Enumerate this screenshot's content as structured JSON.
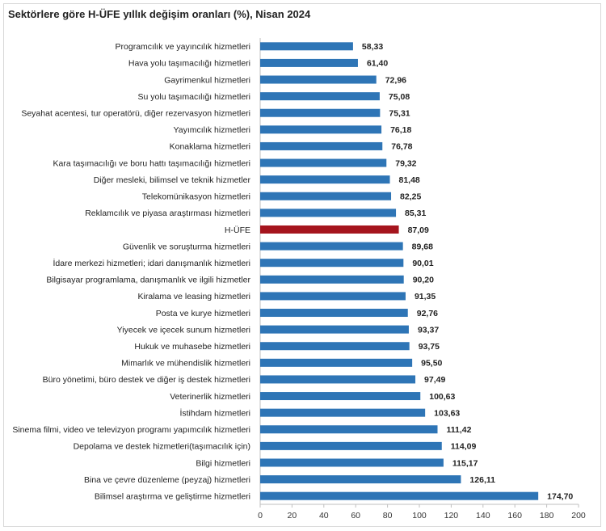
{
  "title": "Sektörlere göre H-ÜFE yıllık değişim oranları (%), Nisan 2024",
  "colors": {
    "bar": "#2e75b6",
    "highlight": "#a5141d"
  },
  "chart_data": {
    "type": "bar",
    "orientation": "horizontal",
    "title": "Sektörlere göre H-ÜFE yıllık değişim oranları (%), Nisan 2024",
    "xlabel": "",
    "ylabel": "",
    "xlim": [
      0,
      200
    ],
    "x_ticks": [
      "0",
      "20",
      "40",
      "60",
      "80",
      "100",
      "120",
      "140",
      "160",
      "180",
      "200"
    ],
    "grid": false,
    "highlighted_category": "H-ÜFE",
    "categories": [
      "Programcılık ve yayıncılık hizmetleri",
      "Hava yolu taşımacılığı hizmetleri",
      "Gayrimenkul hizmetleri",
      "Su yolu taşımacılığı hizmetleri",
      "Seyahat acentesi, tur operatörü, diğer rezervasyon hizmetleri",
      "Yayımcılık hizmetleri",
      "Konaklama hizmetleri",
      "Kara taşımacılığı ve boru hattı taşımacılığı hizmetleri",
      "Diğer mesleki, bilimsel ve teknik hizmetler",
      "Telekomünikasyon hizmetleri",
      "Reklamcılık ve piyasa araştırması hizmetleri",
      "H-ÜFE",
      "Güvenlik ve soruşturma hizmetleri",
      "İdare merkezi hizmetleri; idari danışmanlık hizmetleri",
      "Bilgisayar programlama, danışmanlık ve ilgili hizmetler",
      "Kiralama ve leasing hizmetleri",
      "Posta ve kurye hizmetleri",
      "Yiyecek ve içecek sunum hizmetleri",
      "Hukuk ve muhasebe hizmetleri",
      "Mimarlık ve mühendislik hizmetleri",
      "Büro yönetimi, büro destek ve diğer iş destek hizmetleri",
      "Veterinerlik hizmetleri",
      "İstihdam hizmetleri",
      "Sinema filmi, video ve televizyon programı yapımcılık hizmetleri",
      "Depolama ve destek hizmetleri(taşımacılık için)",
      "Bilgi hizmetleri",
      "Bina ve çevre düzenleme (peyzaj) hizmetleri",
      "Bilimsel araştırma ve geliştirme hizmetleri"
    ],
    "values": [
      58.33,
      61.4,
      72.96,
      75.08,
      75.31,
      76.18,
      76.78,
      79.32,
      81.48,
      82.25,
      85.31,
      87.09,
      89.68,
      90.01,
      90.2,
      91.35,
      92.76,
      93.37,
      93.75,
      95.5,
      97.49,
      100.63,
      103.63,
      111.42,
      114.09,
      115.17,
      126.11,
      174.7
    ],
    "value_labels": [
      "58,33",
      "61,40",
      "72,96",
      "75,08",
      "75,31",
      "76,18",
      "76,78",
      "79,32",
      "81,48",
      "82,25",
      "85,31",
      "87,09",
      "89,68",
      "90,01",
      "90,20",
      "91,35",
      "92,76",
      "93,37",
      "93,75",
      "95,50",
      "97,49",
      "100,63",
      "103,63",
      "111,42",
      "114,09",
      "115,17",
      "126,11",
      "174,70"
    ]
  }
}
